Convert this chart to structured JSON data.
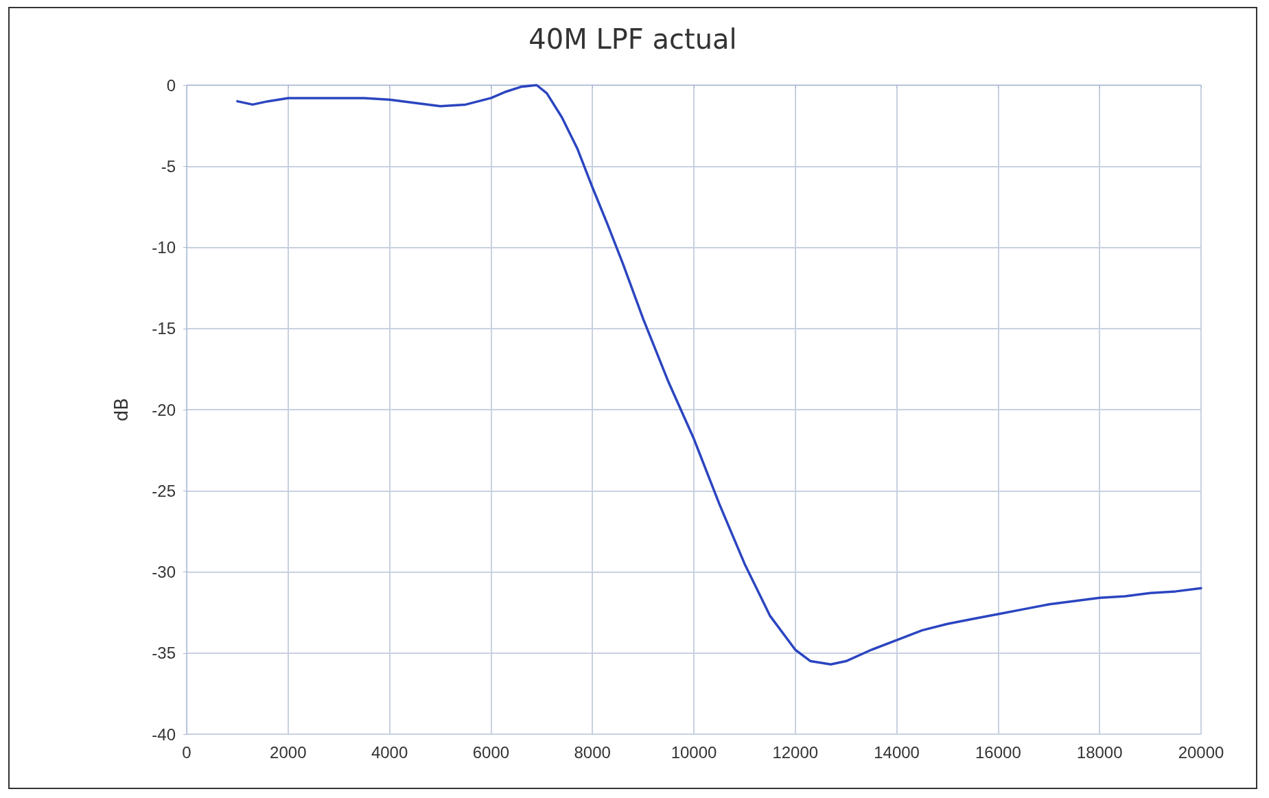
{
  "chart_data": {
    "type": "line",
    "title": "40M LPF actual",
    "ylabel": "dB",
    "x": [
      1000,
      1300,
      1600,
      2000,
      2500,
      3000,
      3500,
      4000,
      4500,
      5000,
      5500,
      6000,
      6300,
      6600,
      6900,
      7100,
      7400,
      7700,
      8000,
      8300,
      8600,
      9000,
      9500,
      10000,
      10500,
      11000,
      11500,
      12000,
      12300,
      12700,
      13000,
      13500,
      14000,
      14500,
      15000,
      15500,
      16000,
      16500,
      17000,
      17500,
      18000,
      18500,
      19000,
      19500,
      20000
    ],
    "series": [
      {
        "color": "#2b45c0",
        "values": [
          -1.0,
          -1.2,
          -1.0,
          -0.8,
          -0.8,
          -0.8,
          -0.8,
          -0.9,
          -1.1,
          -1.3,
          -1.2,
          -0.8,
          -0.4,
          -0.1,
          0,
          -0.5,
          -2.0,
          -3.9,
          -6.3,
          -8.6,
          -11.0,
          -14.4,
          -18.3,
          -21.8,
          -25.8,
          -29.5,
          -32.7,
          -34.8,
          -35.5,
          -35.7,
          -35.5,
          -34.8,
          -34.2,
          -33.6,
          -33.2,
          -32.9,
          -32.6,
          -32.3,
          -32.0,
          -31.8,
          -31.6,
          -31.5,
          -31.3,
          -31.2,
          -31.0
        ]
      }
    ],
    "xlim": [
      0,
      20000
    ],
    "xticks": [
      0,
      2000,
      4000,
      6000,
      8000,
      10000,
      12000,
      14000,
      16000,
      18000,
      20000
    ],
    "ylim": [
      -40,
      0
    ],
    "yticks": [
      -40,
      -35,
      -30,
      -25,
      -20,
      -15,
      -10,
      -5,
      0
    ],
    "grid": true,
    "marker": "none",
    "line_style": "solid"
  }
}
